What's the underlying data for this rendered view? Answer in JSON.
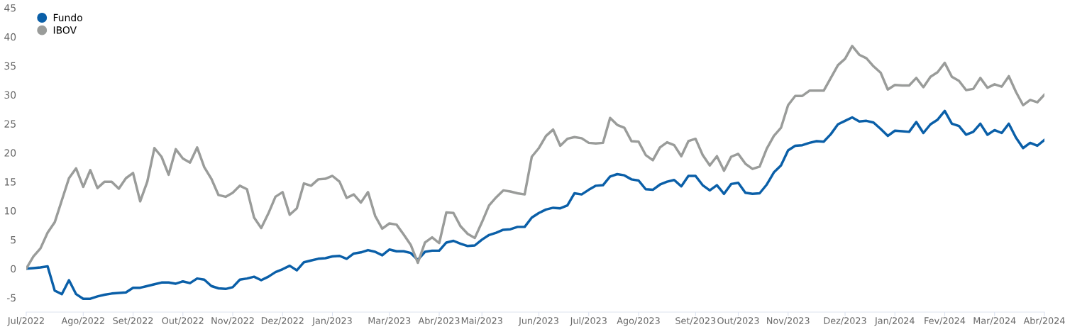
{
  "chart_data": {
    "type": "line",
    "categories": [
      "Jul/2022",
      null,
      null,
      null,
      null,
      null,
      null,
      null,
      "Ago/2022",
      null,
      null,
      null,
      null,
      null,
      null,
      "Set/2022",
      null,
      null,
      null,
      null,
      null,
      null,
      "Out/2022",
      null,
      null,
      null,
      null,
      null,
      null,
      "Nov/2022",
      null,
      null,
      null,
      null,
      null,
      null,
      "Dez/2022",
      null,
      null,
      null,
      null,
      null,
      null,
      "Jan/2023",
      null,
      null,
      null,
      null,
      null,
      null,
      null,
      "Mar/2023",
      null,
      null,
      null,
      null,
      null,
      null,
      "Abr/2023",
      null,
      null,
      null,
      null,
      null,
      "Mai/2023",
      null,
      null,
      null,
      null,
      null,
      null,
      null,
      "Jun/2023",
      null,
      null,
      null,
      null,
      null,
      null,
      "Jul/2023",
      null,
      null,
      null,
      null,
      null,
      null,
      "Ago/2023",
      null,
      null,
      null,
      null,
      null,
      null,
      null,
      "Set/2023",
      null,
      null,
      null,
      null,
      null,
      "Out/2023",
      null,
      null,
      null,
      null,
      null,
      null,
      "Nov/2023",
      null,
      null,
      null,
      null,
      null,
      null,
      null,
      "Dez/2023",
      null,
      null,
      null,
      null,
      null,
      null,
      "Jan/2024",
      null,
      null,
      null,
      null,
      null,
      null,
      "Fev/2024",
      null,
      null,
      null,
      null,
      null,
      null,
      "Mar/2024",
      null,
      null,
      null,
      null,
      null,
      null,
      "Abr/2024"
    ],
    "ylim": [
      -7.5,
      45
    ],
    "yticks": [
      -5,
      0,
      5,
      10,
      15,
      20,
      25,
      30,
      35,
      40,
      45
    ],
    "grid": false,
    "legend": "top left",
    "marker": "none",
    "line_style": "solid",
    "series": [
      {
        "name": "Fundo",
        "color": "#0a5fa8",
        "values": [
          0,
          0.1,
          0.2,
          0.4,
          -3.8,
          -4.4,
          -2.0,
          -4.4,
          -5.2,
          -5.2,
          -4.8,
          -4.5,
          -4.3,
          -4.2,
          -4.1,
          -3.3,
          -3.3,
          -3.0,
          -2.7,
          -2.4,
          -2.4,
          -2.6,
          -2.2,
          -2.5,
          -1.7,
          -1.9,
          -3.0,
          -3.4,
          -3.5,
          -3.2,
          -1.9,
          -1.7,
          -1.4,
          -2.0,
          -1.4,
          -0.6,
          -0.1,
          0.5,
          -0.3,
          1.1,
          1.4,
          1.7,
          1.8,
          2.1,
          2.2,
          1.7,
          2.6,
          2.8,
          3.2,
          2.9,
          2.3,
          3.3,
          3.0,
          3.0,
          2.7,
          1.5,
          2.9,
          3.1,
          3.1,
          4.5,
          4.8,
          4.3,
          3.9,
          4.0,
          5.0,
          5.8,
          6.2,
          6.7,
          6.8,
          7.2,
          7.2,
          8.8,
          9.6,
          10.2,
          10.5,
          10.4,
          10.9,
          13.0,
          12.8,
          13.6,
          14.3,
          14.4,
          15.9,
          16.3,
          16.1,
          15.4,
          15.2,
          13.7,
          13.6,
          14.5,
          15.0,
          15.3,
          14.2,
          16.0,
          16.0,
          14.4,
          13.5,
          14.4,
          12.9,
          14.6,
          14.8,
          13.1,
          12.9,
          13.0,
          14.5,
          16.6,
          17.8,
          20.4,
          21.2,
          21.3,
          21.7,
          22.0,
          21.9,
          23.2,
          24.9,
          25.5,
          26.1,
          25.4,
          25.5,
          25.2,
          24.1,
          22.9,
          23.8,
          23.7,
          23.6,
          25.3,
          23.4,
          24.9,
          25.7,
          27.2,
          25.0,
          24.6,
          23.1,
          23.6,
          25.0,
          23.1,
          23.9,
          23.4,
          25.0,
          22.6,
          20.8,
          21.7,
          21.2,
          22.2
        ]
      },
      {
        "name": "IBOV",
        "color": "#9a9c9a",
        "values": [
          0,
          2.1,
          3.5,
          6.2,
          8.0,
          11.8,
          15.6,
          17.3,
          14.1,
          17.0,
          13.9,
          15.0,
          15.0,
          13.8,
          15.6,
          16.5,
          11.6,
          15.0,
          20.8,
          19.3,
          16.2,
          20.6,
          19.0,
          18.3,
          20.9,
          17.5,
          15.5,
          12.7,
          12.4,
          13.1,
          14.3,
          13.7,
          8.8,
          7.0,
          9.5,
          12.4,
          13.2,
          9.3,
          10.4,
          14.7,
          14.3,
          15.4,
          15.5,
          16.0,
          15.0,
          12.2,
          12.8,
          11.4,
          13.2,
          9.1,
          6.9,
          7.8,
          7.6,
          5.9,
          4.1,
          1.0,
          4.5,
          5.4,
          4.4,
          9.7,
          9.6,
          7.3,
          6.0,
          5.3,
          8.0,
          10.9,
          12.3,
          13.5,
          13.3,
          13.0,
          12.8,
          19.3,
          20.8,
          22.9,
          24.0,
          21.2,
          22.4,
          22.7,
          22.5,
          21.7,
          21.6,
          21.7,
          26.0,
          24.8,
          24.3,
          22.0,
          21.9,
          19.6,
          18.7,
          20.9,
          21.8,
          21.3,
          19.4,
          22.0,
          22.4,
          19.6,
          17.8,
          19.4,
          16.9,
          19.3,
          19.8,
          18.1,
          17.2,
          17.6,
          20.7,
          22.9,
          24.3,
          28.2,
          29.8,
          29.8,
          30.7,
          30.7,
          30.7,
          32.9,
          35.1,
          36.2,
          38.4,
          36.9,
          36.3,
          34.9,
          33.8,
          30.9,
          31.7,
          31.6,
          31.6,
          32.9,
          31.3,
          33.1,
          33.9,
          35.5,
          33.1,
          32.4,
          30.8,
          31.0,
          32.9,
          31.2,
          31.8,
          31.4,
          33.2,
          30.5,
          28.2,
          29.1,
          28.7,
          30.0
        ]
      }
    ]
  }
}
